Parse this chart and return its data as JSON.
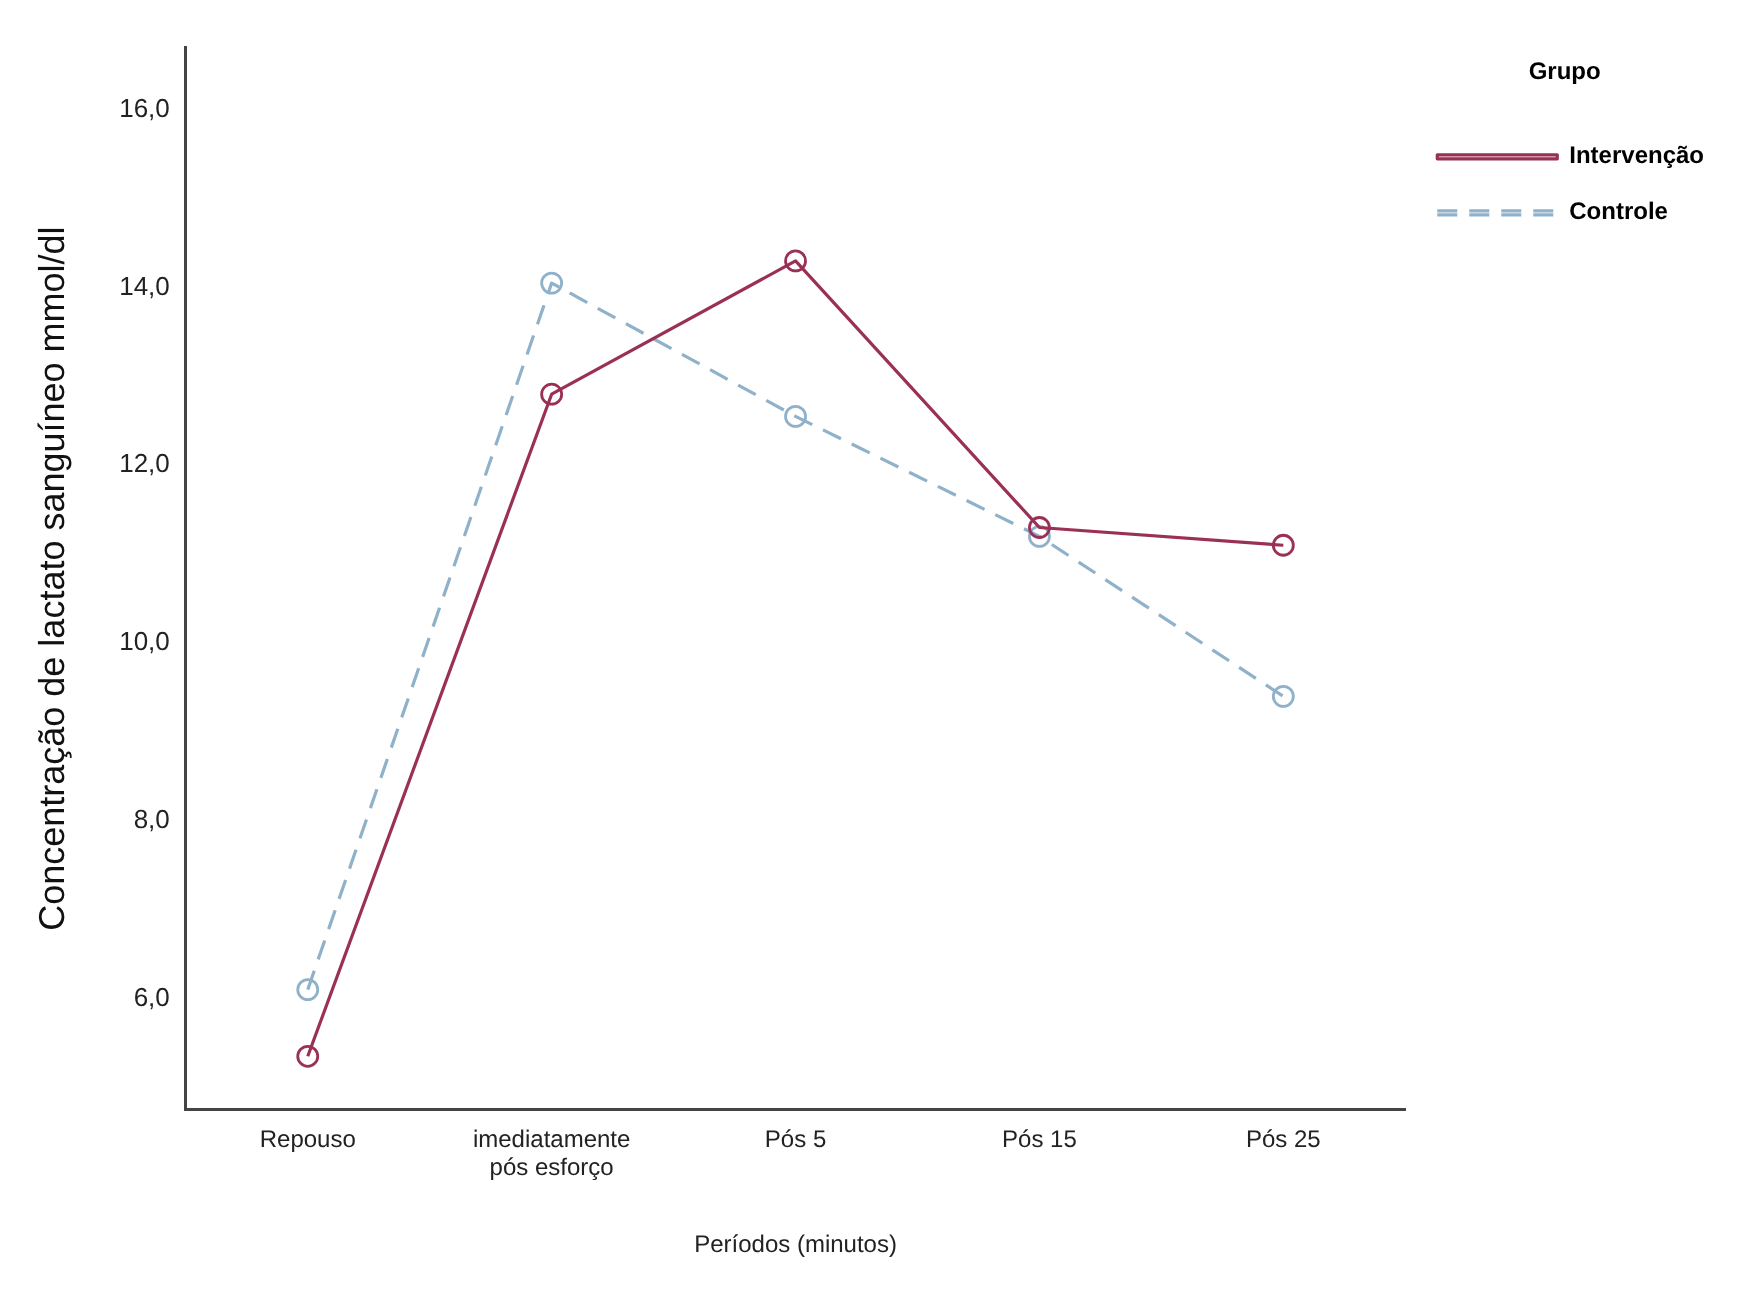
{
  "chart_data": {
    "type": "line",
    "xlabel": "Períodos (minutos)",
    "ylabel": "Concentração de lactato sanguíneo mmol/dl",
    "legend_title": "Grupo",
    "categories": [
      "Repouso",
      "imediatamente pós esforço",
      "Pós 5",
      "Pós 15",
      "Pós 25"
    ],
    "series": [
      {
        "name": "Intervenção",
        "color": "#9b3056",
        "line_style": "solid",
        "values": [
          5.35,
          12.8,
          14.3,
          11.3,
          11.1
        ]
      },
      {
        "name": "Controle",
        "color": "#8fb1c9",
        "line_style": "dashed",
        "values": [
          6.1,
          14.05,
          12.55,
          11.2,
          9.4
        ]
      }
    ],
    "ylim": [
      4.75,
      16.7
    ],
    "yticks": [
      {
        "value": 6,
        "label": "6,0"
      },
      {
        "value": 8,
        "label": "8,0"
      },
      {
        "value": 10,
        "label": "10,0"
      },
      {
        "value": 12,
        "label": "12,0"
      },
      {
        "value": 14,
        "label": "14,0"
      },
      {
        "value": 16,
        "label": "16,0"
      }
    ],
    "grid": false,
    "legend": "top right",
    "marker": "circle"
  }
}
